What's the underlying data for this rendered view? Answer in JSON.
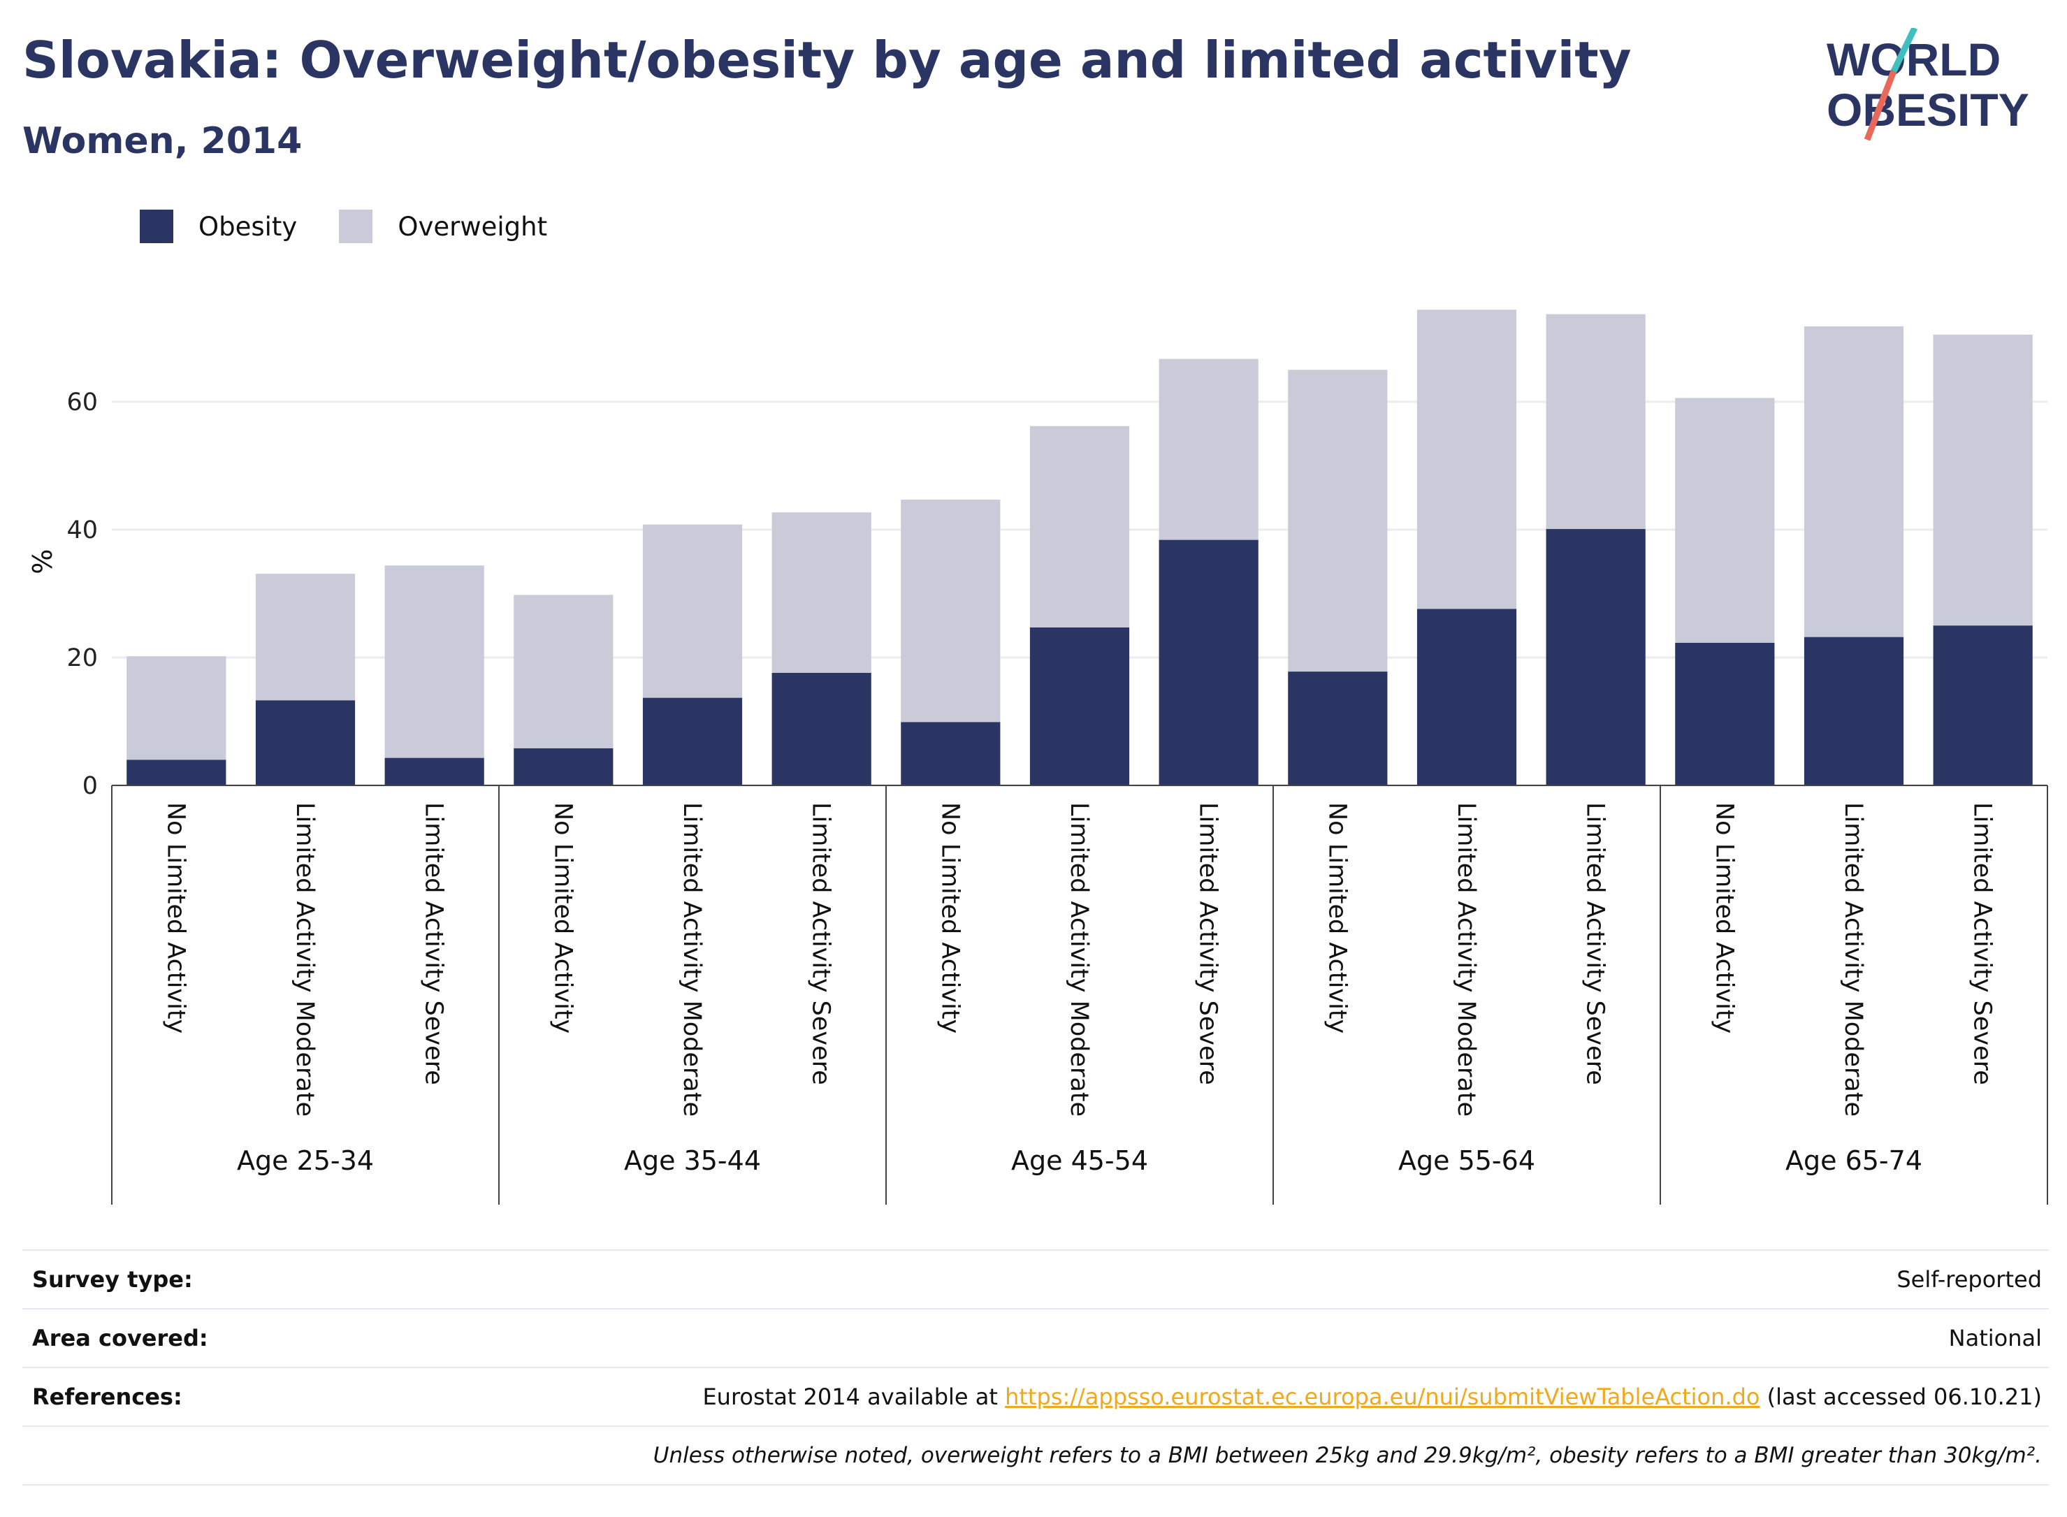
{
  "header": {
    "title": "Slovakia: Overweight/obesity by age and limited activity",
    "subtitle": "Women, 2014"
  },
  "logo": {
    "line1": "WORLD",
    "line2": "OBESITY",
    "colors": {
      "text": "#2b3563",
      "slash_top": "#3fbfbf",
      "slash_bottom": "#e8685a"
    }
  },
  "legend": [
    {
      "name": "Obesity",
      "color": "#2b3563"
    },
    {
      "name": "Overweight",
      "color": "#c9cbd8"
    }
  ],
  "chart_data": {
    "type": "bar",
    "stacked": true,
    "ylabel": "%",
    "xlabel": "",
    "ylim": [
      0,
      75
    ],
    "yticks": [
      0,
      20,
      40,
      60
    ],
    "grid": true,
    "legend_position": "top-left",
    "groups": [
      "Age 25-34",
      "Age 35-44",
      "Age 45-54",
      "Age 55-64",
      "Age 65-74"
    ],
    "categories": [
      "No Limited Activity",
      "Limited Activity Moderate",
      "Limited Activity Severe",
      "No Limited Activity",
      "Limited Activity Moderate",
      "Limited Activity Severe",
      "No Limited Activity",
      "Limited Activity Moderate",
      "Limited Activity Severe",
      "No Limited Activity",
      "Limited Activity Moderate",
      "Limited Activity Severe",
      "No Limited Activity",
      "Limited Activity Moderate",
      "Limited Activity Severe"
    ],
    "series": [
      {
        "name": "Obesity",
        "color": "#2b3563",
        "values": [
          4.0,
          13.3,
          4.3,
          5.8,
          13.7,
          17.6,
          9.9,
          24.7,
          38.4,
          17.8,
          27.6,
          40.1,
          22.3,
          23.2,
          25.0
        ]
      },
      {
        "name": "Overweight",
        "color": "#c9cbd8",
        "values": [
          16.2,
          19.8,
          30.1,
          24.0,
          27.1,
          25.1,
          34.8,
          31.5,
          28.3,
          47.2,
          46.8,
          33.6,
          38.3,
          48.6,
          45.5
        ]
      }
    ]
  },
  "footer": {
    "survey_type": {
      "label": "Survey type:",
      "value": "Self-reported"
    },
    "area_covered": {
      "label": "Area covered:",
      "value": "National"
    },
    "references": {
      "label": "References:",
      "prefix": "Eurostat 2014 available at ",
      "link": "https://appsso.eurostat.ec.europa.eu/nui/submitViewTableAction.do",
      "suffix": " (last accessed 06.10.21)"
    },
    "note": "Unless otherwise noted, overweight refers to a BMI between 25kg and 29.9kg/m², obesity refers to a BMI greater than 30kg/m²."
  }
}
